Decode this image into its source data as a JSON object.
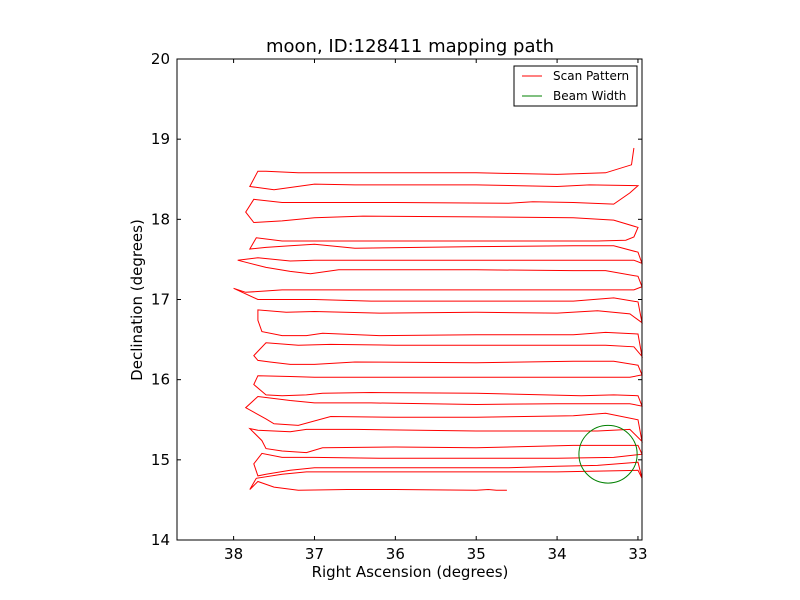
{
  "chart_data": {
    "type": "line",
    "title": "moon, ID:128411 mapping path",
    "xlabel": "Right Ascension (degrees)",
    "ylabel": "Declination (degrees)",
    "xlim": [
      38.7,
      32.95
    ],
    "ylim": [
      14,
      20
    ],
    "x_inverted": true,
    "xticks": [
      38,
      37,
      36,
      35,
      34,
      33
    ],
    "xtick_labels": [
      "38",
      "37",
      "36",
      "35",
      "34",
      "33"
    ],
    "yticks": [
      14,
      15,
      16,
      17,
      18,
      19,
      20
    ],
    "ytick_labels": [
      "14",
      "15",
      "16",
      "17",
      "18",
      "19",
      "20"
    ],
    "grid": false,
    "legend_position": "top-right",
    "colors": {
      "scan": "#ff0000",
      "beam": "#008000"
    },
    "series": [
      {
        "name": "Scan Pattern",
        "type": "line",
        "x": [
          34.62,
          34.75,
          34.85,
          35.0,
          36.0,
          36.6,
          37.2,
          37.5,
          37.7,
          37.8,
          37.72,
          37.4,
          37.1,
          36.5,
          35.0,
          34.0,
          33.5,
          33.0,
          32.95,
          33.0,
          33.5,
          34.0,
          34.6,
          36.0,
          37.0,
          37.3,
          37.6,
          37.7,
          37.75,
          37.65,
          37.4,
          37.0,
          36.2,
          35.0,
          34.0,
          33.3,
          32.95,
          33.0,
          33.3,
          33.8,
          35.0,
          36.0,
          36.9,
          37.1,
          37.4,
          37.6,
          37.65,
          37.8,
          37.7,
          37.3,
          37.1,
          36.5,
          35.0,
          34.0,
          33.5,
          33.1,
          32.95,
          33.0,
          33.4,
          33.8,
          35.0,
          36.0,
          36.8,
          37.2,
          37.5,
          37.6,
          37.85,
          37.7,
          37.3,
          37.0,
          36.3,
          35.0,
          34.0,
          33.6,
          33.1,
          32.95,
          33.0,
          33.3,
          33.7,
          35.0,
          36.3,
          36.9,
          37.1,
          37.4,
          37.6,
          37.75,
          37.7,
          37.3,
          37.0,
          36.4,
          35.0,
          34.0,
          33.6,
          33.1,
          32.95,
          33.0,
          33.3,
          33.8,
          35.0,
          36.5,
          37.0,
          37.3,
          37.55,
          37.7,
          37.75,
          37.6,
          37.2,
          36.8,
          36.0,
          35.0,
          34.0,
          33.4,
          33.05,
          32.95,
          33.0,
          33.4,
          33.8,
          35.0,
          36.2,
          36.9,
          37.1,
          37.4,
          37.65,
          37.7,
          37.7,
          37.35,
          37.0,
          36.2,
          35.0,
          34.0,
          33.5,
          33.1,
          32.95,
          33.0,
          33.3,
          33.8,
          35.0,
          36.3,
          37.0,
          37.3,
          37.7,
          38.0,
          37.85,
          37.4,
          37.0,
          36.2,
          35.0,
          34.2,
          33.5,
          33.05,
          32.95,
          33.0,
          33.4,
          33.8,
          35.0,
          36.7,
          37.05,
          37.3,
          37.6,
          37.95,
          37.7,
          37.3,
          37.0,
          36.3,
          35.0,
          34.0,
          33.4,
          33.05,
          32.95,
          33.0,
          33.3,
          33.8,
          35.0,
          36.5,
          37.0,
          37.3,
          37.6,
          37.8,
          37.72,
          37.4,
          37.0,
          36.3,
          35.0,
          34.0,
          33.5,
          33.15,
          33.05,
          33.0,
          33.3,
          33.8,
          35.0,
          36.4,
          37.0,
          37.4,
          37.75,
          37.85,
          37.75,
          37.4,
          37.0,
          36.0,
          34.6,
          34.3,
          33.8,
          33.3,
          33.1,
          33.0,
          33.6,
          34.0,
          35.0,
          36.5,
          37.0,
          37.5,
          37.8,
          37.7,
          37.6,
          37.2,
          36.5,
          35.0,
          34.0,
          33.4,
          33.08,
          33.05
        ],
        "y": [
          14.62,
          14.62,
          14.63,
          14.62,
          14.63,
          14.63,
          14.62,
          14.66,
          14.73,
          14.63,
          14.77,
          14.82,
          14.85,
          14.85,
          14.85,
          14.85,
          14.86,
          14.87,
          14.77,
          14.97,
          14.93,
          14.92,
          14.9,
          14.9,
          14.9,
          14.87,
          14.82,
          14.8,
          14.95,
          15.08,
          15.03,
          15.03,
          15.02,
          15.02,
          15.02,
          15.03,
          15.07,
          15.18,
          15.18,
          15.18,
          15.15,
          15.16,
          15.15,
          15.09,
          15.11,
          15.14,
          15.24,
          15.39,
          15.37,
          15.35,
          15.38,
          15.38,
          15.36,
          15.36,
          15.36,
          15.38,
          15.23,
          15.5,
          15.58,
          15.55,
          15.53,
          15.53,
          15.54,
          15.43,
          15.45,
          15.51,
          15.65,
          15.79,
          15.74,
          15.71,
          15.71,
          15.69,
          15.7,
          15.7,
          15.7,
          15.67,
          15.8,
          15.81,
          15.8,
          15.83,
          15.84,
          15.83,
          15.81,
          15.8,
          15.81,
          15.94,
          16.05,
          16.04,
          16.03,
          16.03,
          16.03,
          16.03,
          16.03,
          16.03,
          16.06,
          16.18,
          16.23,
          16.23,
          16.21,
          16.22,
          16.19,
          16.19,
          16.22,
          16.24,
          16.3,
          16.46,
          16.43,
          16.44,
          16.43,
          16.43,
          16.43,
          16.43,
          16.41,
          16.29,
          16.57,
          16.59,
          16.56,
          16.56,
          16.55,
          16.58,
          16.55,
          16.55,
          16.6,
          16.74,
          16.87,
          16.84,
          16.85,
          16.83,
          16.84,
          16.83,
          16.86,
          16.82,
          16.71,
          16.97,
          17.02,
          16.98,
          16.98,
          16.98,
          17.0,
          17.0,
          17.0,
          17.14,
          17.09,
          17.12,
          17.12,
          17.12,
          17.12,
          17.12,
          17.12,
          17.12,
          17.16,
          17.29,
          17.36,
          17.36,
          17.37,
          17.37,
          17.32,
          17.35,
          17.4,
          17.49,
          17.52,
          17.48,
          17.49,
          17.49,
          17.49,
          17.49,
          17.49,
          17.49,
          17.45,
          17.59,
          17.67,
          17.67,
          17.66,
          17.64,
          17.69,
          17.67,
          17.65,
          17.63,
          17.77,
          17.73,
          17.73,
          17.73,
          17.73,
          17.73,
          17.73,
          17.74,
          17.78,
          17.9,
          17.99,
          18.02,
          18.03,
          18.04,
          18.02,
          17.98,
          17.96,
          18.09,
          18.25,
          18.21,
          18.21,
          18.21,
          18.2,
          18.22,
          18.21,
          18.19,
          18.33,
          18.42,
          18.43,
          18.41,
          18.43,
          18.43,
          18.44,
          18.37,
          18.41,
          18.6,
          18.6,
          18.58,
          18.58,
          18.58,
          18.56,
          18.58,
          18.68,
          18.89
        ]
      },
      {
        "name": "Beam Width",
        "type": "circle",
        "center": [
          33.37,
          15.07
        ],
        "radius_x_deg": 0.36,
        "radius_y_deg": 0.36
      }
    ]
  },
  "legend": {
    "items": [
      {
        "label": "Scan Pattern",
        "color": "#ff0000"
      },
      {
        "label": "Beam Width",
        "color": "#008000"
      }
    ]
  }
}
